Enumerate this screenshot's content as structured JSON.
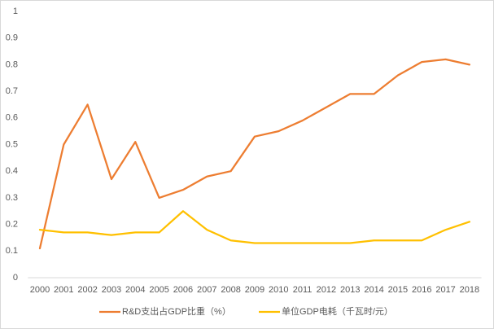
{
  "chart_data": {
    "type": "line",
    "categories": [
      "2000",
      "2001",
      "2002",
      "2003",
      "2004",
      "2005",
      "2006",
      "2007",
      "2008",
      "2009",
      "2010",
      "2011",
      "2012",
      "2013",
      "2014",
      "2015",
      "2016",
      "2017",
      "2018"
    ],
    "series": [
      {
        "name": "R&D支出占GDP比重（%）",
        "color": "#ED7D31",
        "values": [
          0.11,
          0.5,
          0.65,
          0.37,
          0.51,
          0.3,
          0.33,
          0.38,
          0.4,
          0.53,
          0.55,
          0.59,
          0.64,
          0.69,
          0.69,
          0.76,
          0.81,
          0.82,
          0.8
        ]
      },
      {
        "name": "单位GDP电耗（千瓦时/元）",
        "color": "#FFC000",
        "values": [
          0.18,
          0.17,
          0.17,
          0.16,
          0.17,
          0.17,
          0.25,
          0.18,
          0.14,
          0.13,
          0.13,
          0.13,
          0.13,
          0.13,
          0.14,
          0.14,
          0.14,
          0.18,
          0.21
        ]
      }
    ],
    "ylim": [
      0,
      1
    ],
    "yticks": [
      0,
      0.1,
      0.2,
      0.3,
      0.4,
      0.5,
      0.6,
      0.7,
      0.8,
      0.9,
      1
    ],
    "grid": false,
    "legend": "bottom"
  }
}
